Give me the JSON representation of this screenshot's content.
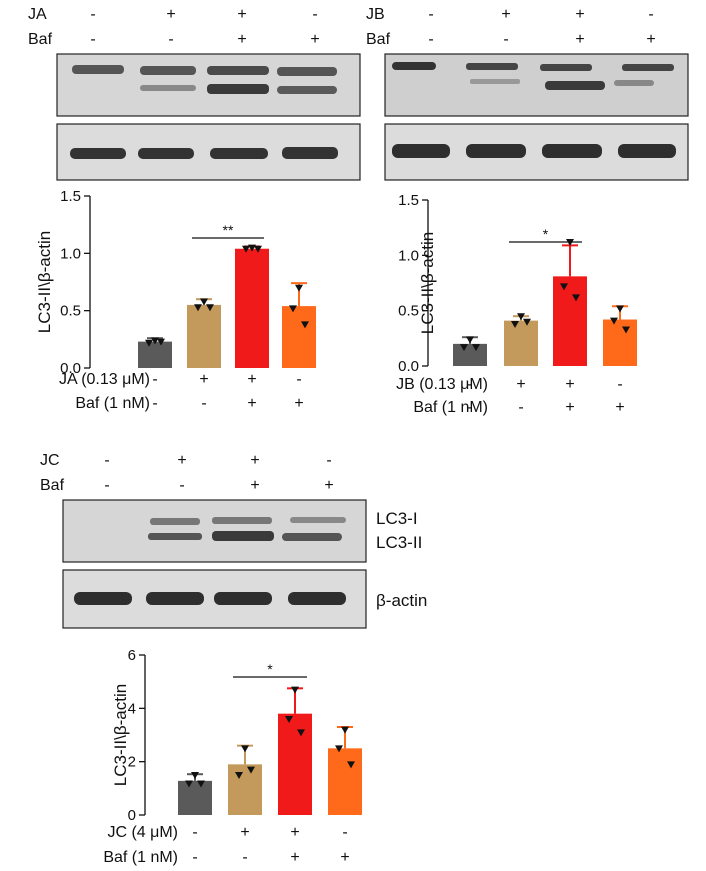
{
  "colors": {
    "control": "#5a5a5a",
    "ja_only": "#c49a5c",
    "ja_baf": "#f01a1a",
    "baf_only": "#ff6a1a",
    "blot_bg": "#dcdcdc",
    "band": "#3a3a3a"
  },
  "panels": [
    {
      "id": "ja",
      "treatment": "JA",
      "treatment_row": [
        "-",
        "+",
        "+",
        "-"
      ],
      "baf_label": "Baf",
      "baf_row": [
        "-",
        "-",
        "+",
        "+"
      ],
      "chart_labels": [
        "JA (0.13 μM)",
        "Baf (1 nM)"
      ]
    },
    {
      "id": "jb",
      "treatment": "JB",
      "treatment_row": [
        "-",
        "+",
        "+",
        "-"
      ],
      "baf_label": "Baf",
      "baf_row": [
        "-",
        "-",
        "+",
        "+"
      ],
      "chart_labels": [
        "JB (0.13 μM)",
        "Baf (1 nM)"
      ]
    },
    {
      "id": "jc",
      "treatment": "JC",
      "treatment_row": [
        "-",
        "+",
        "+",
        "-"
      ],
      "baf_label": "Baf",
      "baf_row": [
        "-",
        "-",
        "+",
        "+"
      ],
      "chart_labels": [
        "JC (4 μM)",
        "Baf (1 nM)"
      ]
    }
  ],
  "blot_labels": {
    "lc3_i": "LC3-I",
    "lc3_ii": "LC3-II",
    "actin": "β-actin"
  },
  "chart_data": [
    {
      "type": "bar",
      "panel": "ja",
      "ylabel": "LC3-II\\β-actin",
      "ylim": [
        0,
        1.5
      ],
      "yticks": [
        "0.0",
        "0.5",
        "1.0",
        "1.5"
      ],
      "categories": [
        "-/-",
        "+/-",
        "+/+",
        "-/+"
      ],
      "values": [
        0.23,
        0.55,
        1.04,
        0.54
      ],
      "errors": [
        0.03,
        0.05,
        0.02,
        0.2
      ],
      "points": [
        [
          0.24,
          0.22,
          0.23
        ],
        [
          0.58,
          0.53,
          0.53
        ],
        [
          1.05,
          1.04,
          1.04
        ],
        [
          0.7,
          0.52,
          0.38
        ]
      ],
      "significance": {
        "from": 1,
        "to": 2,
        "label": "**"
      }
    },
    {
      "type": "bar",
      "panel": "jb",
      "ylabel": "LC3-II\\β-actin",
      "ylim": [
        0,
        1.5
      ],
      "yticks": [
        "0.0",
        "0.5",
        "1.0",
        "1.5"
      ],
      "categories": [
        "-/-",
        "+/-",
        "+/+",
        "-/+"
      ],
      "values": [
        0.2,
        0.41,
        0.81,
        0.42
      ],
      "errors": [
        0.06,
        0.04,
        0.28,
        0.12
      ],
      "points": [
        [
          0.24,
          0.17,
          0.17
        ],
        [
          0.45,
          0.38,
          0.4
        ],
        [
          1.12,
          0.72,
          0.62
        ],
        [
          0.52,
          0.41,
          0.33
        ]
      ],
      "significance": {
        "from": 1,
        "to": 2,
        "label": "*"
      }
    },
    {
      "type": "bar",
      "panel": "jc",
      "ylabel": "LC3-II\\β-actin",
      "ylim": [
        0,
        6
      ],
      "yticks": [
        "0",
        "2",
        "4",
        "6"
      ],
      "categories": [
        "-/-",
        "+/-",
        "+/+",
        "-/+"
      ],
      "values": [
        1.28,
        1.9,
        3.8,
        2.5
      ],
      "errors": [
        0.25,
        0.7,
        0.95,
        0.8
      ],
      "points": [
        [
          1.5,
          1.18,
          1.18
        ],
        [
          2.5,
          1.5,
          1.7
        ],
        [
          4.7,
          3.6,
          3.1
        ],
        [
          3.2,
          2.5,
          1.9
        ]
      ],
      "significance": {
        "from": 1,
        "to": 2,
        "label": "*"
      }
    }
  ]
}
